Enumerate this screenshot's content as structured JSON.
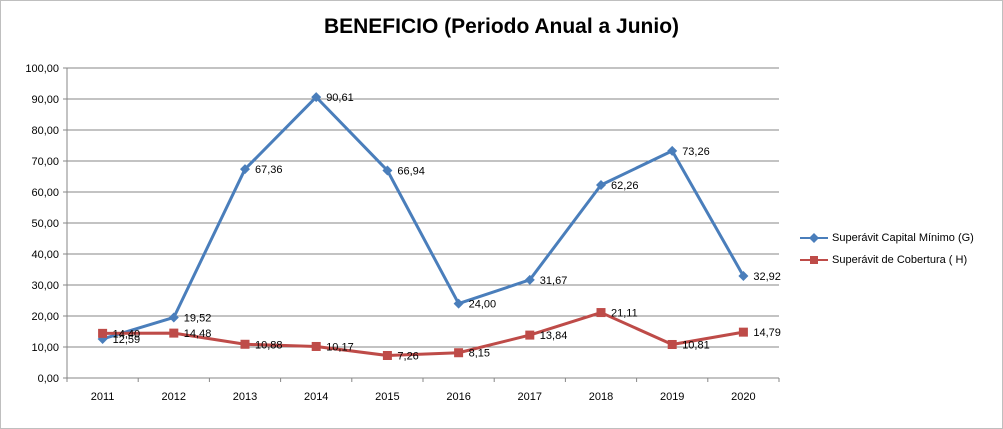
{
  "chart_data": {
    "type": "line",
    "title": "BENEFICIO (Periodo Anual a Junio)",
    "categories": [
      "2011",
      "2012",
      "2013",
      "2014",
      "2015",
      "2016",
      "2017",
      "2018",
      "2019",
      "2020"
    ],
    "ylim": [
      0,
      100
    ],
    "ytick_step": 10,
    "ytick_labels": [
      "0,00",
      "10,00",
      "20,00",
      "30,00",
      "40,00",
      "50,00",
      "60,00",
      "70,00",
      "80,00",
      "90,00",
      "100,00"
    ],
    "grid": true,
    "legend_position": "right",
    "series": [
      {
        "name": "Superávit Capital Mínimo  (G)",
        "color": "#4a7ebb",
        "marker": "diamond",
        "values": [
          12.59,
          19.52,
          67.36,
          90.61,
          66.94,
          24.0,
          31.67,
          62.26,
          73.26,
          32.92
        ],
        "labels": [
          "12,59",
          "19,52",
          "67,36",
          "90,61",
          "66,94",
          "24,00",
          "31,67",
          "62,26",
          "73,26",
          "32,92"
        ]
      },
      {
        "name": "Superávit de Cobertura ( H)",
        "color": "#be4b48",
        "marker": "square",
        "values": [
          14.4,
          14.48,
          10.88,
          10.17,
          7.26,
          8.15,
          13.84,
          21.11,
          10.81,
          14.79
        ],
        "labels": [
          "14,40",
          "14,48",
          "10,88",
          "10,17",
          "7,26",
          "8,15",
          "13,84",
          "21,11",
          "10,81",
          "14,79"
        ]
      }
    ]
  }
}
